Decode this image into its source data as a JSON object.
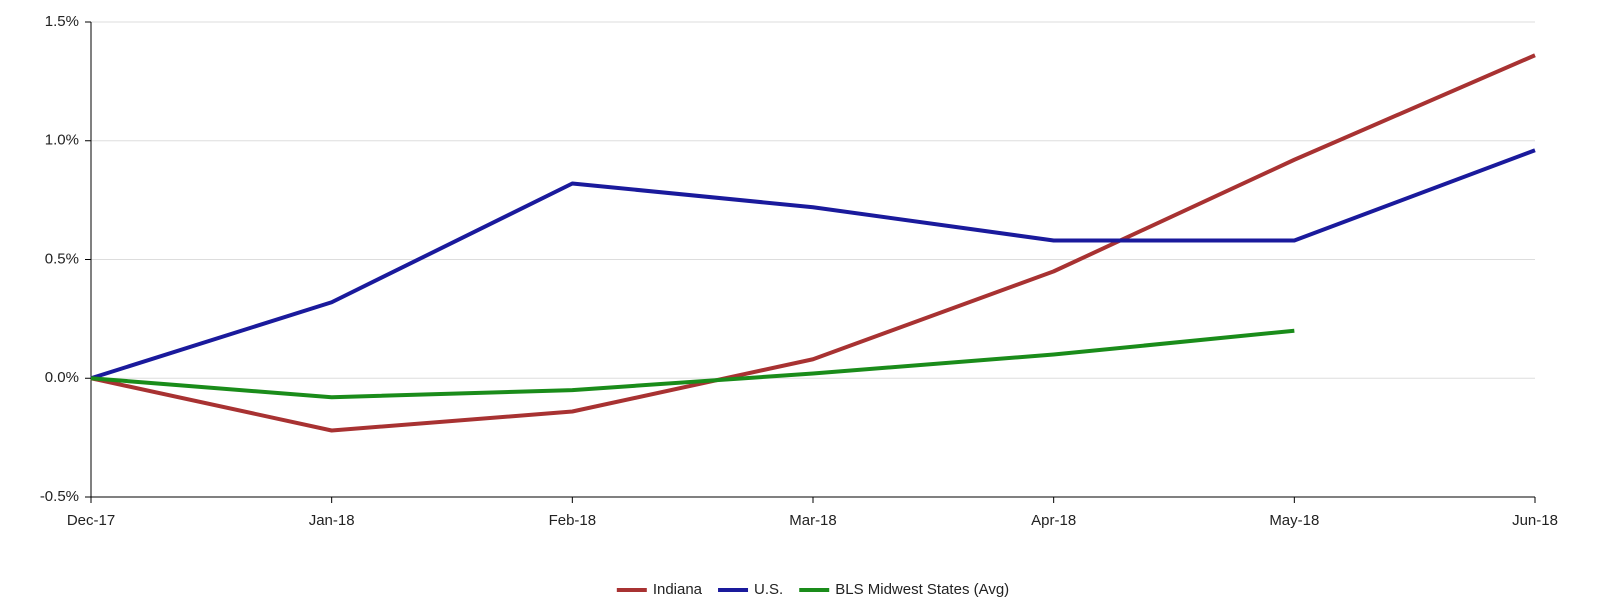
{
  "chart_data": {
    "type": "line",
    "categories": [
      "Dec-17",
      "Jan-18",
      "Feb-18",
      "Mar-18",
      "Apr-18",
      "May-18",
      "Jun-18"
    ],
    "series": [
      {
        "name": "Indiana",
        "color": "#a83232",
        "values": [
          0,
          -0.22,
          -0.14,
          0.08,
          0.45,
          0.92,
          1.36
        ]
      },
      {
        "name": "U.S.",
        "color": "#1a1a9c",
        "values": [
          0,
          0.32,
          0.82,
          0.72,
          0.58,
          0.58,
          0.96
        ]
      },
      {
        "name": "BLS Midwest States (Avg)",
        "color": "#1a8c1a",
        "values": [
          0,
          -0.08,
          -0.05,
          0.02,
          0.1,
          0.2,
          null
        ]
      }
    ],
    "ylim": [
      -0.5,
      1.5
    ],
    "yticks": [
      {
        "value": -0.5,
        "label": "-0.5%"
      },
      {
        "value": 0,
        "label": "0.0%"
      },
      {
        "value": 0.5,
        "label": "0.5%"
      },
      {
        "value": 1,
        "label": "1.0%"
      },
      {
        "value": 1.5,
        "label": "1.5%"
      }
    ],
    "grid": true,
    "legend": "bottom"
  }
}
